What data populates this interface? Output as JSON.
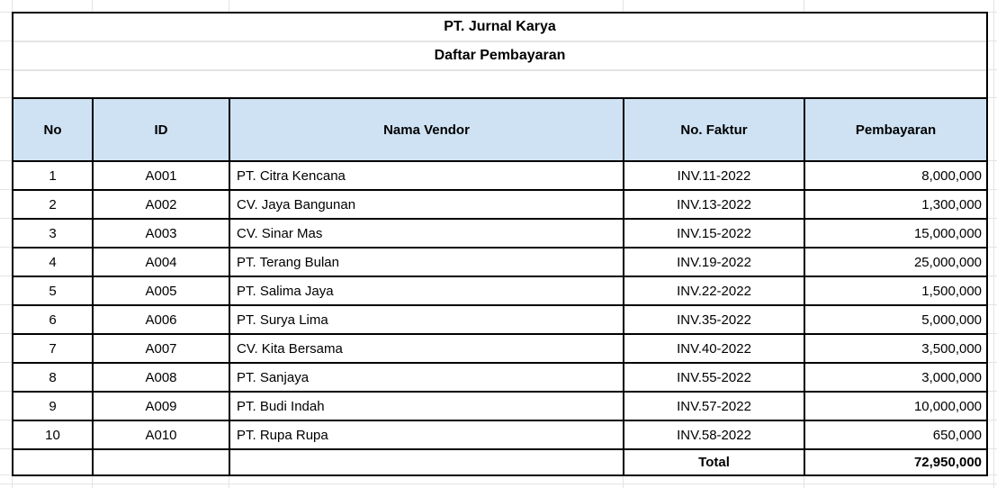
{
  "titles": {
    "company": "PT. Jurnal Karya",
    "subtitle": "Daftar Pembayaran"
  },
  "table": {
    "columns": [
      "No",
      "ID",
      "Nama Vendor",
      "No. Faktur",
      "Pembayaran"
    ],
    "rows": [
      {
        "no": "1",
        "id": "A001",
        "vendor": "PT. Citra Kencana",
        "faktur": "INV.11-2022",
        "pembayaran": "8,000,000"
      },
      {
        "no": "2",
        "id": "A002",
        "vendor": "CV. Jaya Bangunan",
        "faktur": "INV.13-2022",
        "pembayaran": "1,300,000"
      },
      {
        "no": "3",
        "id": "A003",
        "vendor": "CV. Sinar Mas",
        "faktur": "INV.15-2022",
        "pembayaran": "15,000,000"
      },
      {
        "no": "4",
        "id": "A004",
        "vendor": "PT. Terang Bulan",
        "faktur": "INV.19-2022",
        "pembayaran": "25,000,000"
      },
      {
        "no": "5",
        "id": "A005",
        "vendor": "PT. Salima Jaya",
        "faktur": "INV.22-2022",
        "pembayaran": "1,500,000"
      },
      {
        "no": "6",
        "id": "A006",
        "vendor": "PT. Surya Lima",
        "faktur": "INV.35-2022",
        "pembayaran": "5,000,000"
      },
      {
        "no": "7",
        "id": "A007",
        "vendor": "CV. Kita Bersama",
        "faktur": "INV.40-2022",
        "pembayaran": "3,500,000"
      },
      {
        "no": "8",
        "id": "A008",
        "vendor": "PT. Sanjaya",
        "faktur": "INV.55-2022",
        "pembayaran": "3,000,000"
      },
      {
        "no": "9",
        "id": "A009",
        "vendor": "PT. Budi Indah",
        "faktur": "INV.57-2022",
        "pembayaran": "10,000,000"
      },
      {
        "no": "10",
        "id": "A010",
        "vendor": "PT. Rupa Rupa",
        "faktur": "INV.58-2022",
        "pembayaran": "650,000"
      }
    ],
    "total": {
      "label": "Total",
      "value": "72,950,000"
    }
  },
  "colors": {
    "header_bg": "#cfe2f3",
    "table_border": "#000000",
    "gridline": "#e3e3e3"
  }
}
